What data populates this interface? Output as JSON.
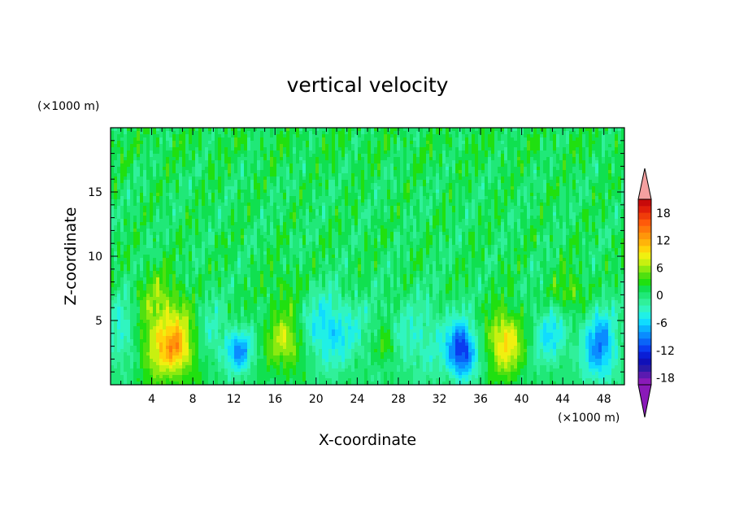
{
  "chart_data": {
    "type": "heatmap",
    "title": "vertical velocity",
    "xlabel": "X-coordinate",
    "ylabel": "Z-coordinate",
    "x_unit": "(×1000 m)",
    "y_unit": "(×1000 m)",
    "xlim": [
      0,
      50
    ],
    "ylim": [
      0,
      20
    ],
    "x_ticks": [
      4,
      8,
      12,
      16,
      20,
      24,
      28,
      32,
      36,
      40,
      44,
      48
    ],
    "y_ticks": [
      5,
      10,
      15
    ],
    "colorbar": {
      "levels": [
        -21,
        -19.5,
        -18,
        -16.5,
        -15,
        -13.5,
        -12,
        -10.5,
        -9,
        -7.5,
        -6,
        -4.5,
        -3,
        -1.5,
        0,
        1.5,
        3,
        4.5,
        6,
        7.5,
        9,
        10.5,
        12,
        13.5,
        15,
        16.5,
        18,
        19.5,
        21
      ],
      "tick_labels": [
        "-18",
        "-12",
        "-6",
        "0",
        "6",
        "12",
        "18"
      ],
      "tick_values": [
        -18,
        -12,
        -6,
        0,
        6,
        12,
        18
      ],
      "colors": [
        "#8a1ab8",
        "#5a1ab0",
        "#2a1aa8",
        "#1010b8",
        "#0a1ed6",
        "#0a3cf0",
        "#0a64f8",
        "#0a8cff",
        "#0ab4ff",
        "#10dcff",
        "#20f0e6",
        "#30f5c0",
        "#30f09a",
        "#20e878",
        "#10e050",
        "#20e010",
        "#50e010",
        "#8cea10",
        "#c8f010",
        "#f0f010",
        "#ffd40a",
        "#ffb40a",
        "#ff960a",
        "#ff780a",
        "#ff5a0a",
        "#f03c0a",
        "#e01e0a",
        "#c80a0a"
      ],
      "extend_low_color": "#8a1ab8",
      "extend_high_color": "#f4a0a0"
    },
    "features": [
      {
        "x": 5.8,
        "z": 3.2,
        "peak": 10.5,
        "sx": 2.0,
        "sz": 2.0
      },
      {
        "x": 6.4,
        "z": 2.8,
        "peak": 3,
        "sx": 0.6,
        "sz": 0.8
      },
      {
        "x": 17.2,
        "z": 3.4,
        "peak": 7.5,
        "sx": 1.4,
        "sz": 1.6
      },
      {
        "x": 38.4,
        "z": 3.3,
        "peak": 9.5,
        "sx": 1.2,
        "sz": 1.7
      },
      {
        "x": 26.8,
        "z": 3.0,
        "peak": 5,
        "sx": 0.7,
        "sz": 1.1
      },
      {
        "x": 44.8,
        "z": 7.2,
        "peak": 4,
        "sx": 1.2,
        "sz": 1.2
      },
      {
        "x": 4.8,
        "z": 7.0,
        "peak": 3.5,
        "sx": 1.6,
        "sz": 1.4
      },
      {
        "x": 16.8,
        "z": 7.5,
        "peak": 2.5,
        "sx": 1.2,
        "sz": 1.2
      },
      {
        "x": 34.2,
        "z": 2.6,
        "peak": -13,
        "sx": 1.0,
        "sz": 1.5
      },
      {
        "x": 47.6,
        "z": 3.0,
        "peak": -10,
        "sx": 1.2,
        "sz": 2.0
      },
      {
        "x": 12.5,
        "z": 2.6,
        "peak": -9,
        "sx": 1.0,
        "sz": 1.2
      },
      {
        "x": 21.2,
        "z": 4.2,
        "peak": -7,
        "sx": 2.2,
        "sz": 2.0
      },
      {
        "x": 42.8,
        "z": 3.8,
        "peak": -6,
        "sx": 1.2,
        "sz": 1.6
      },
      {
        "x": 30.0,
        "z": 3.5,
        "peak": -4,
        "sx": 2.5,
        "sz": 2.2
      },
      {
        "x": 1.2,
        "z": 4.0,
        "peak": -5,
        "sx": 1.2,
        "sz": 2.0
      },
      {
        "x": 9.5,
        "z": 4.0,
        "peak": -4,
        "sx": 1.2,
        "sz": 2.0
      }
    ]
  }
}
